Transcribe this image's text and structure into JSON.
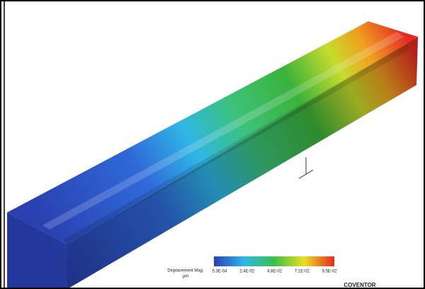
{
  "figure": {
    "legend_title": "Displacement Mag.",
    "legend_unit": "µm",
    "legend_ticks": [
      "5.3E-04",
      "2.4E-02",
      "4.8E-02",
      "7.1E-02",
      "9.5E-02"
    ],
    "watermark": "COVENTOR"
  }
}
